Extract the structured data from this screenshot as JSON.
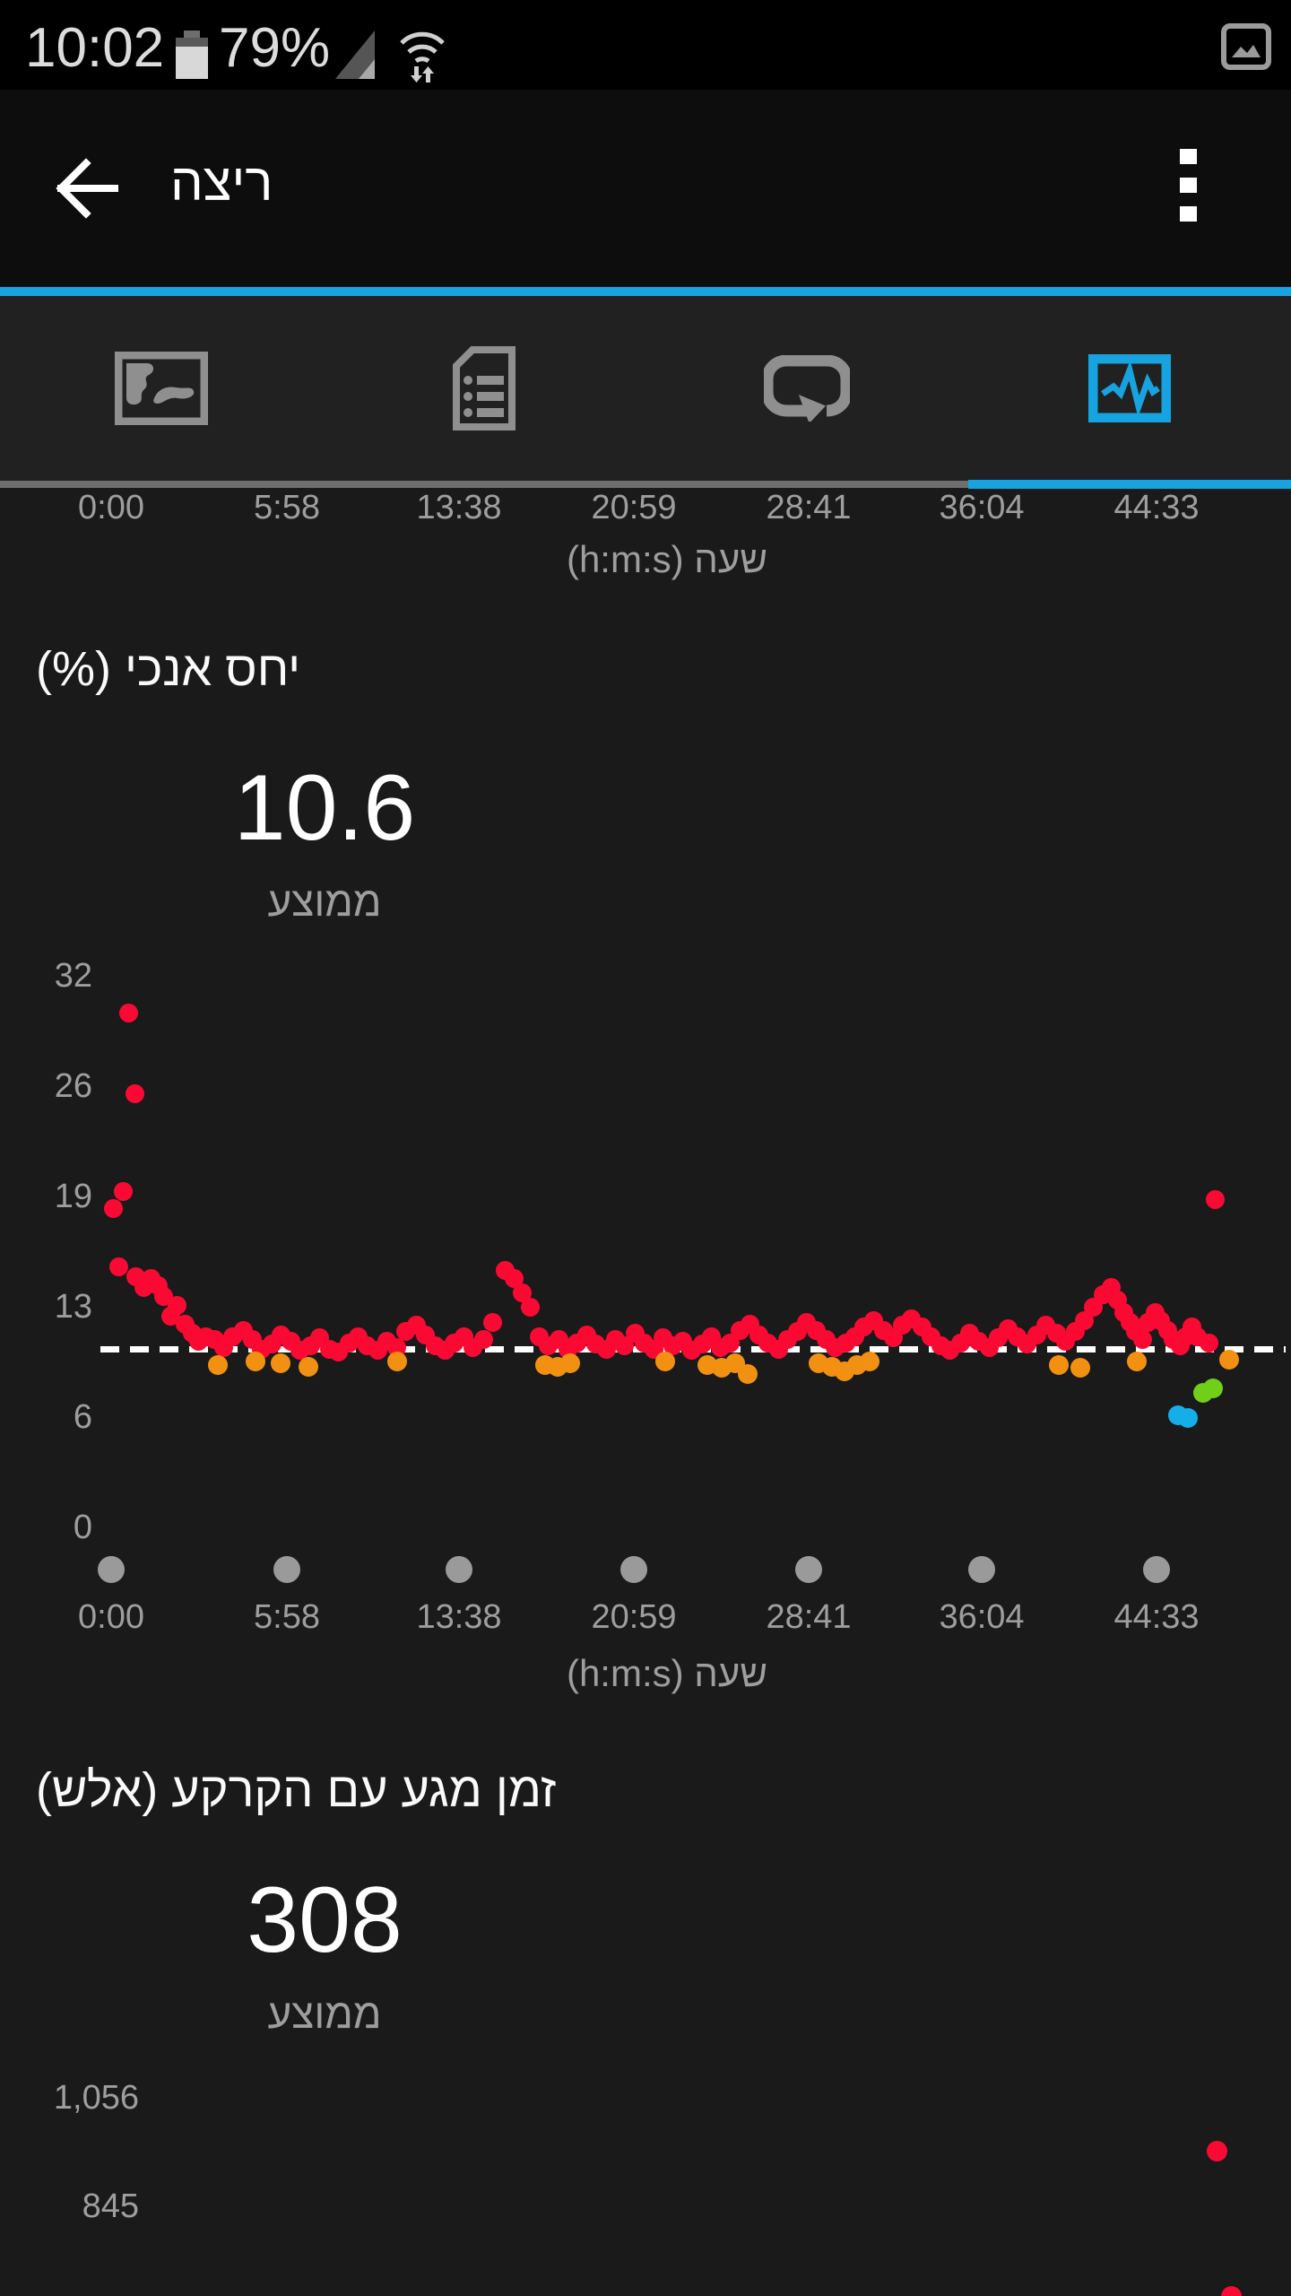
{
  "status_bar": {
    "time": "10:02",
    "battery_percent": "79%"
  },
  "toolbar": {
    "title": "ריצה"
  },
  "tabs": {
    "active_index": 3,
    "active_color": "#17a3e0",
    "items": [
      {
        "name": "map"
      },
      {
        "name": "details"
      },
      {
        "name": "laps"
      },
      {
        "name": "charts"
      }
    ]
  },
  "top_chart_axis": {
    "x_ticks": [
      "0:00",
      "5:58",
      "13:38",
      "20:59",
      "28:41",
      "36:04",
      "44:33"
    ],
    "axis_title": "שעה (h:m:s)"
  },
  "chart_data": [
    {
      "type": "scatter",
      "title": "יחס אנכי (%)",
      "average_value": "10.6",
      "average_label": "ממוצע",
      "average_line": 10.6,
      "y_ticks": [
        32,
        26,
        19,
        13,
        6,
        0
      ],
      "x_ticks": [
        "0:00",
        "5:58",
        "13:38",
        "20:59",
        "28:41",
        "36:04",
        "44:33"
      ],
      "xlabel": "שעה (h:m:s)",
      "ylim": [
        0,
        35
      ],
      "grid": false,
      "point_colors": {
        "r": "#fa0a33",
        "o": "#f29111",
        "g": "#70d018",
        "b": "#16aee8"
      },
      "points": [
        [
          0.013,
          18.6,
          "r"
        ],
        [
          0.018,
          15.4,
          "r"
        ],
        [
          0.022,
          19.6,
          "r"
        ],
        [
          0.026,
          30.2,
          "r"
        ],
        [
          0.032,
          25.8,
          "r"
        ],
        [
          0.033,
          14.9,
          "r"
        ],
        [
          0.04,
          14.3,
          "r"
        ],
        [
          0.046,
          14.8,
          "r"
        ],
        [
          0.052,
          14.4,
          "r"
        ],
        [
          0.057,
          13.8,
          "r"
        ],
        [
          0.063,
          12.7,
          "r"
        ],
        [
          0.069,
          13.3,
          "r"
        ],
        [
          0.076,
          12.2,
          "r"
        ],
        [
          0.082,
          11.6,
          "r"
        ],
        [
          0.088,
          11.1,
          "r"
        ],
        [
          0.094,
          11.4,
          "r"
        ],
        [
          0.102,
          11.2,
          "r"
        ],
        [
          0.11,
          10.7,
          "r"
        ],
        [
          0.118,
          11.4,
          "r"
        ],
        [
          0.127,
          11.8,
          "r"
        ],
        [
          0.135,
          11.2,
          "r"
        ],
        [
          0.143,
          10.6,
          "r"
        ],
        [
          0.152,
          10.9,
          "r"
        ],
        [
          0.16,
          11.5,
          "r"
        ],
        [
          0.169,
          11.1,
          "r"
        ],
        [
          0.177,
          10.5,
          "r"
        ],
        [
          0.186,
          10.8,
          "r"
        ],
        [
          0.194,
          11.3,
          "r"
        ],
        [
          0.203,
          10.6,
          "r"
        ],
        [
          0.211,
          10.4,
          "r"
        ],
        [
          0.22,
          11.0,
          "r"
        ],
        [
          0.228,
          11.4,
          "r"
        ],
        [
          0.236,
          10.8,
          "r"
        ],
        [
          0.245,
          10.5,
          "r"
        ],
        [
          0.253,
          11.1,
          "r"
        ],
        [
          0.262,
          10.7,
          "r"
        ],
        [
          0.27,
          11.7,
          "r"
        ],
        [
          0.279,
          12.1,
          "r"
        ],
        [
          0.287,
          11.5,
          "r"
        ],
        [
          0.296,
          10.8,
          "r"
        ],
        [
          0.304,
          10.5,
          "r"
        ],
        [
          0.312,
          11.0,
          "r"
        ],
        [
          0.321,
          11.4,
          "r"
        ],
        [
          0.329,
          10.7,
          "r"
        ],
        [
          0.338,
          11.2,
          "r"
        ],
        [
          0.346,
          12.3,
          "r"
        ],
        [
          0.357,
          15.2,
          "r"
        ],
        [
          0.365,
          14.8,
          "r"
        ],
        [
          0.372,
          14.0,
          "r"
        ],
        [
          0.379,
          13.2,
          "r"
        ],
        [
          0.387,
          11.4,
          "r"
        ],
        [
          0.395,
          10.8,
          "r"
        ],
        [
          0.404,
          11.2,
          "r"
        ],
        [
          0.412,
          10.6,
          "r"
        ],
        [
          0.42,
          11.0,
          "r"
        ],
        [
          0.429,
          11.5,
          "r"
        ],
        [
          0.437,
          10.9,
          "r"
        ],
        [
          0.446,
          10.6,
          "r"
        ],
        [
          0.454,
          11.2,
          "r"
        ],
        [
          0.462,
          10.8,
          "r"
        ],
        [
          0.471,
          11.6,
          "r"
        ],
        [
          0.479,
          11.0,
          "r"
        ],
        [
          0.488,
          10.6,
          "r"
        ],
        [
          0.496,
          11.3,
          "r"
        ],
        [
          0.504,
          10.8,
          "r"
        ],
        [
          0.513,
          11.1,
          "r"
        ],
        [
          0.521,
          10.5,
          "r"
        ],
        [
          0.53,
          10.9,
          "r"
        ],
        [
          0.538,
          11.4,
          "r"
        ],
        [
          0.546,
          10.7,
          "r"
        ],
        [
          0.555,
          11.0,
          "r"
        ],
        [
          0.563,
          11.8,
          "r"
        ],
        [
          0.572,
          12.2,
          "r"
        ],
        [
          0.58,
          11.5,
          "r"
        ],
        [
          0.588,
          11.0,
          "r"
        ],
        [
          0.597,
          10.6,
          "r"
        ],
        [
          0.605,
          11.2,
          "r"
        ],
        [
          0.614,
          11.7,
          "r"
        ],
        [
          0.622,
          12.3,
          "r"
        ],
        [
          0.63,
          11.8,
          "r"
        ],
        [
          0.639,
          11.2,
          "r"
        ],
        [
          0.647,
          10.7,
          "r"
        ],
        [
          0.656,
          11.0,
          "r"
        ],
        [
          0.664,
          11.4,
          "r"
        ],
        [
          0.672,
          12.0,
          "r"
        ],
        [
          0.681,
          12.4,
          "r"
        ],
        [
          0.689,
          11.8,
          "r"
        ],
        [
          0.698,
          11.3,
          "r"
        ],
        [
          0.706,
          12.1,
          "r"
        ],
        [
          0.714,
          12.5,
          "r"
        ],
        [
          0.723,
          12.0,
          "r"
        ],
        [
          0.731,
          11.4,
          "r"
        ],
        [
          0.74,
          10.8,
          "r"
        ],
        [
          0.748,
          10.5,
          "r"
        ],
        [
          0.757,
          11.0,
          "r"
        ],
        [
          0.765,
          11.6,
          "r"
        ],
        [
          0.773,
          11.1,
          "r"
        ],
        [
          0.782,
          10.7,
          "r"
        ],
        [
          0.79,
          11.3,
          "r"
        ],
        [
          0.799,
          11.9,
          "r"
        ],
        [
          0.807,
          11.4,
          "r"
        ],
        [
          0.815,
          10.9,
          "r"
        ],
        [
          0.824,
          11.5,
          "r"
        ],
        [
          0.832,
          12.1,
          "r"
        ],
        [
          0.841,
          11.6,
          "r"
        ],
        [
          0.849,
          11.1,
          "r"
        ],
        [
          0.858,
          11.7,
          "r"
        ],
        [
          0.866,
          12.4,
          "r"
        ],
        [
          0.874,
          13.2,
          "r"
        ],
        [
          0.882,
          13.9,
          "r"
        ],
        [
          0.889,
          14.3,
          "r"
        ],
        [
          0.895,
          13.6,
          "r"
        ],
        [
          0.9,
          12.9,
          "r"
        ],
        [
          0.906,
          12.3,
          "r"
        ],
        [
          0.911,
          11.7,
          "r"
        ],
        [
          0.917,
          11.2,
          "r"
        ],
        [
          0.922,
          12.3,
          "r"
        ],
        [
          0.928,
          12.9,
          "r"
        ],
        [
          0.933,
          12.4,
          "r"
        ],
        [
          0.939,
          11.8,
          "r"
        ],
        [
          0.944,
          11.2,
          "r"
        ],
        [
          0.95,
          10.8,
          "r"
        ],
        [
          0.955,
          11.4,
          "r"
        ],
        [
          0.96,
          12.0,
          "r"
        ],
        [
          0.965,
          11.4,
          "r"
        ],
        [
          0.975,
          11.0,
          "r"
        ],
        [
          0.981,
          19.1,
          "r"
        ],
        [
          0.105,
          9.6,
          "o"
        ],
        [
          0.138,
          9.8,
          "o"
        ],
        [
          0.16,
          9.7,
          "o"
        ],
        [
          0.184,
          9.5,
          "o"
        ],
        [
          0.262,
          9.8,
          "o"
        ],
        [
          0.392,
          9.6,
          "o"
        ],
        [
          0.403,
          9.5,
          "o"
        ],
        [
          0.414,
          9.7,
          "o"
        ],
        [
          0.498,
          9.8,
          "o"
        ],
        [
          0.535,
          9.6,
          "o"
        ],
        [
          0.547,
          9.4,
          "o"
        ],
        [
          0.559,
          9.7,
          "o"
        ],
        [
          0.57,
          9.0,
          "o"
        ],
        [
          0.632,
          9.7,
          "o"
        ],
        [
          0.644,
          9.5,
          "o"
        ],
        [
          0.655,
          9.2,
          "o"
        ],
        [
          0.666,
          9.6,
          "o"
        ],
        [
          0.677,
          9.8,
          "o"
        ],
        [
          0.843,
          9.6,
          "o"
        ],
        [
          0.862,
          9.4,
          "o"
        ],
        [
          0.912,
          9.8,
          "o"
        ],
        [
          0.993,
          9.9,
          "o"
        ],
        [
          0.948,
          6.4,
          "b"
        ],
        [
          0.957,
          6.2,
          "b"
        ],
        [
          0.97,
          7.8,
          "g"
        ],
        [
          0.979,
          8.1,
          "g"
        ]
      ]
    },
    {
      "type": "scatter",
      "title": "זמן מגע עם הקרקע (אלש)",
      "average_value": "308",
      "average_label": "ממוצע",
      "y_ticks_visible": [
        "1,056",
        "845"
      ],
      "y_tick_values": [
        1056,
        845
      ],
      "point_colors": {
        "r": "#fa0a33"
      },
      "points": [
        [
          0.982,
          958,
          "r"
        ],
        [
          0.995,
          675,
          "r"
        ]
      ]
    }
  ]
}
